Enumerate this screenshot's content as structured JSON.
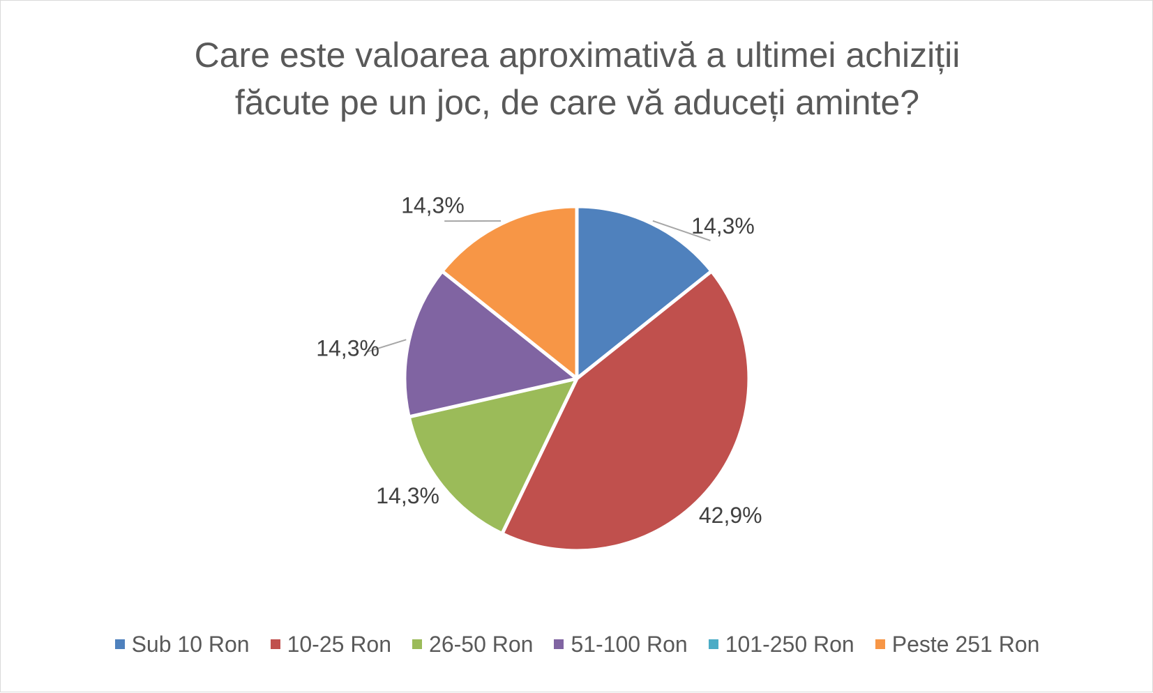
{
  "chart_data": {
    "type": "pie",
    "title": "Care este valoarea aproximativă a ultimei achiziții\nfăcute pe un joc, de care vă aduceți aminte?",
    "categories": [
      "Sub 10 Ron",
      "10-25 Ron",
      "26-50 Ron",
      "51-100 Ron",
      "101-250 Ron",
      "Peste 251 Ron"
    ],
    "values": [
      14.3,
      42.9,
      14.3,
      14.3,
      0,
      14.3
    ],
    "data_labels": [
      "14,3%",
      "42,9%",
      "14,3%",
      "14,3%",
      "",
      "14,3%"
    ],
    "colors": [
      "#4f81bd",
      "#c0504d",
      "#9bbb59",
      "#8064a2",
      "#4bacc6",
      "#f79646"
    ],
    "legend_position": "bottom",
    "start_angle": "top, clockwise"
  }
}
